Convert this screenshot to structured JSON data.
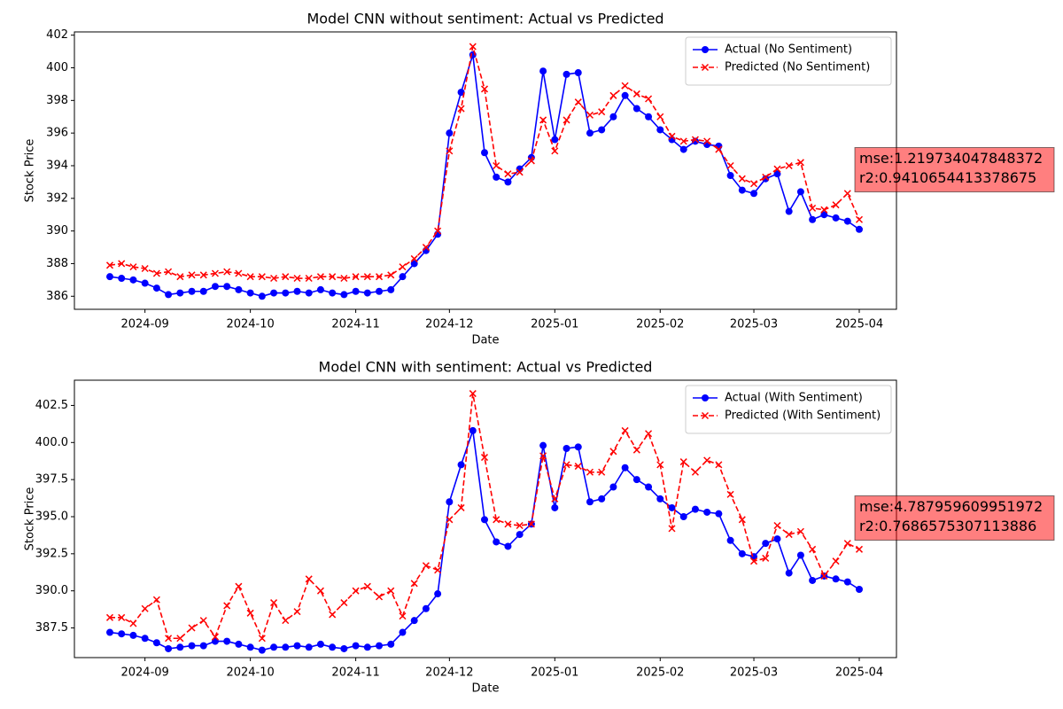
{
  "chart_data": [
    {
      "type": "line",
      "title": "Model CNN without  sentiment: Actual vs Predicted",
      "x_label": "Date",
      "y_label": "Stock Price",
      "categories": [
        null,
        null,
        null,
        "2024-09",
        null,
        null,
        null,
        null,
        null,
        null,
        null,
        null,
        "2024-10",
        null,
        null,
        null,
        null,
        null,
        null,
        null,
        null,
        "2024-11",
        null,
        null,
        null,
        null,
        null,
        null,
        null,
        "2024-12",
        null,
        null,
        null,
        null,
        null,
        null,
        null,
        null,
        "2025-01",
        null,
        null,
        null,
        null,
        null,
        null,
        null,
        null,
        "2025-02",
        null,
        null,
        null,
        null,
        null,
        null,
        null,
        "2025-03",
        null,
        null,
        null,
        null,
        null,
        null,
        null,
        null,
        "2025-04"
      ],
      "series": [
        {
          "name": "Actual (No Sentiment)",
          "color": "#0000ff",
          "style": "solid",
          "marker": "o",
          "values": [
            387.2,
            387.1,
            387.0,
            386.8,
            386.5,
            386.1,
            386.2,
            386.3,
            386.3,
            386.6,
            386.6,
            386.4,
            386.2,
            386.0,
            386.2,
            386.2,
            386.3,
            386.2,
            386.4,
            386.2,
            386.1,
            386.3,
            386.2,
            386.3,
            386.4,
            387.2,
            388.0,
            388.8,
            389.8,
            396.0,
            398.5,
            400.8,
            394.8,
            393.3,
            393.0,
            393.8,
            394.5,
            399.8,
            395.6,
            399.6,
            399.7,
            396.0,
            396.2,
            397.0,
            398.3,
            397.5,
            397.0,
            396.2,
            395.6,
            395.0,
            395.5,
            395.3,
            395.2,
            393.4,
            392.5,
            392.3,
            393.2,
            393.5,
            391.2,
            392.4,
            390.7,
            391.0,
            390.8,
            390.6,
            390.1
          ]
        },
        {
          "name": "Predicted (No Sentiment)",
          "color": "#ff0000",
          "style": "dashed",
          "marker": "x",
          "values": [
            387.9,
            388.0,
            387.8,
            387.7,
            387.4,
            387.5,
            387.2,
            387.3,
            387.3,
            387.4,
            387.5,
            387.4,
            387.2,
            387.2,
            387.1,
            387.2,
            387.1,
            387.1,
            387.2,
            387.2,
            387.1,
            387.2,
            387.2,
            387.2,
            387.3,
            387.8,
            388.3,
            389.0,
            390.0,
            394.9,
            397.5,
            401.3,
            398.7,
            394.0,
            393.5,
            393.6,
            394.3,
            396.8,
            394.9,
            396.8,
            397.9,
            397.1,
            397.3,
            398.3,
            398.9,
            398.4,
            398.1,
            397.0,
            395.8,
            395.5,
            395.6,
            395.5,
            395.0,
            394.0,
            393.2,
            392.9,
            393.3,
            393.8,
            394.0,
            394.2,
            391.4,
            391.3,
            391.6,
            392.3,
            390.7
          ]
        }
      ],
      "ylim": [
        385.2,
        402.2
      ],
      "yticks": [
        386,
        388,
        390,
        392,
        394,
        396,
        398,
        400,
        402
      ],
      "legend": "upper right",
      "annotation": [
        "mse:1.219734047848372",
        "r2:0.9410654413378675"
      ],
      "annotation_color": "#ff0000"
    },
    {
      "type": "line",
      "title": "Model CNN with  sentiment: Actual vs Predicted",
      "x_label": "Date",
      "y_label": "Stock Price",
      "categories": [
        null,
        null,
        null,
        "2024-09",
        null,
        null,
        null,
        null,
        null,
        null,
        null,
        null,
        "2024-10",
        null,
        null,
        null,
        null,
        null,
        null,
        null,
        null,
        "2024-11",
        null,
        null,
        null,
        null,
        null,
        null,
        null,
        "2024-12",
        null,
        null,
        null,
        null,
        null,
        null,
        null,
        null,
        "2025-01",
        null,
        null,
        null,
        null,
        null,
        null,
        null,
        null,
        "2025-02",
        null,
        null,
        null,
        null,
        null,
        null,
        null,
        "2025-03",
        null,
        null,
        null,
        null,
        null,
        null,
        null,
        null,
        "2025-04"
      ],
      "series": [
        {
          "name": "Actual (With Sentiment)",
          "color": "#0000ff",
          "style": "solid",
          "marker": "o",
          "values": [
            387.2,
            387.1,
            387.0,
            386.8,
            386.5,
            386.1,
            386.2,
            386.3,
            386.3,
            386.6,
            386.6,
            386.4,
            386.2,
            386.0,
            386.2,
            386.2,
            386.3,
            386.2,
            386.4,
            386.2,
            386.1,
            386.3,
            386.2,
            386.3,
            386.4,
            387.2,
            388.0,
            388.8,
            389.8,
            396.0,
            398.5,
            400.8,
            394.8,
            393.3,
            393.0,
            393.8,
            394.5,
            399.8,
            395.6,
            399.6,
            399.7,
            396.0,
            396.2,
            397.0,
            398.3,
            397.5,
            397.0,
            396.2,
            395.6,
            395.0,
            395.5,
            395.3,
            395.2,
            393.4,
            392.5,
            392.3,
            393.2,
            393.5,
            391.2,
            392.4,
            390.7,
            391.0,
            390.8,
            390.6,
            390.1
          ]
        },
        {
          "name": "Predicted (With Sentiment)",
          "color": "#ff0000",
          "style": "dashed",
          "marker": "x",
          "values": [
            388.2,
            388.2,
            387.8,
            388.8,
            389.4,
            386.8,
            386.8,
            387.5,
            388.0,
            386.9,
            389.0,
            390.3,
            388.5,
            386.8,
            389.2,
            388.0,
            388.6,
            390.8,
            390.0,
            388.4,
            389.2,
            390.0,
            390.3,
            389.6,
            390.0,
            388.3,
            390.5,
            391.7,
            391.4,
            394.8,
            395.6,
            403.3,
            399.0,
            394.8,
            394.5,
            394.4,
            394.5,
            399.1,
            396.2,
            398.5,
            398.4,
            398.0,
            398.0,
            399.4,
            400.8,
            399.5,
            400.6,
            398.5,
            394.2,
            398.7,
            398.0,
            398.8,
            398.5,
            396.5,
            394.8,
            392.0,
            392.2,
            394.4,
            393.8,
            394.0,
            392.8,
            391.0,
            392.0,
            393.2,
            392.8
          ]
        }
      ],
      "ylim": [
        385.5,
        404.2
      ],
      "yticks": [
        387.5,
        {
          "value": 390,
          "label": "390.0"
        },
        392.5,
        {
          "value": 395,
          "label": "395.0"
        },
        397.5,
        {
          "value": 400,
          "label": "400.0"
        },
        402.5
      ],
      "legend": "upper right",
      "annotation": [
        "mse:4.787959609951972",
        "r2:0.7686575307113886"
      ],
      "annotation_color": "#ff0000"
    }
  ]
}
